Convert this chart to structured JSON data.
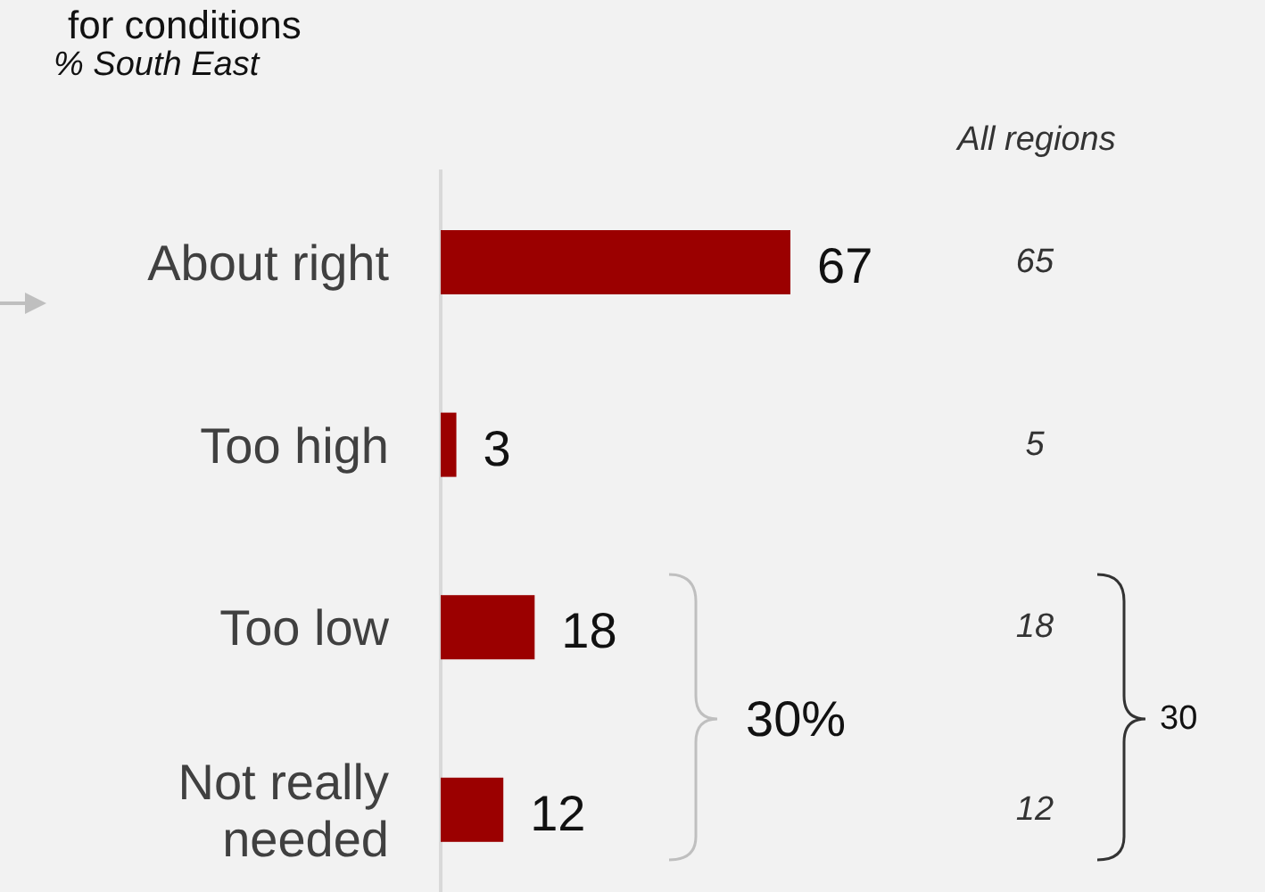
{
  "chart_data": {
    "type": "bar",
    "orientation": "horizontal",
    "title": "for conditions",
    "subtitle": "% South East",
    "categories": [
      "About right",
      "Too high",
      "Too low",
      "Not really needed"
    ],
    "values": [
      67,
      3,
      18,
      12
    ],
    "color": "#9b0000",
    "data_labels": true,
    "annotations": [
      "All regions",
      "65",
      "5",
      "18",
      "12",
      "30%",
      "30"
    ]
  }
}
